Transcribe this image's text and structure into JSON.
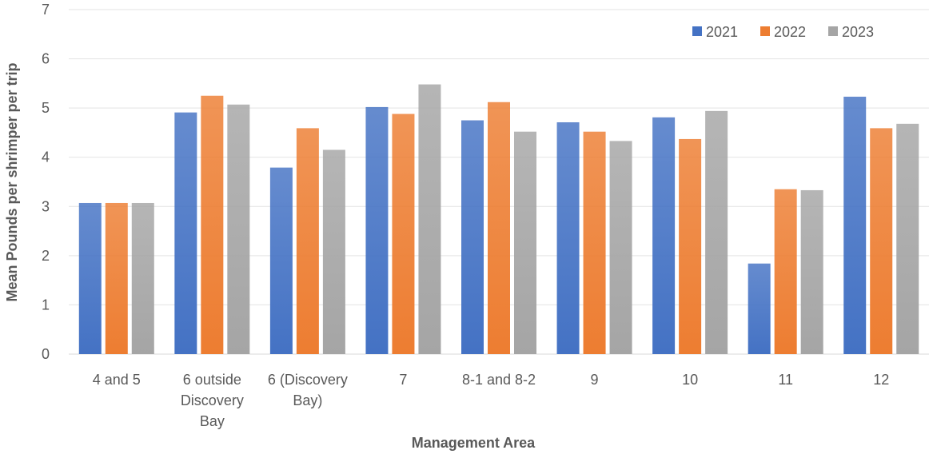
{
  "chart_data": {
    "type": "bar",
    "title": "",
    "xlabel": "Management Area",
    "ylabel": "Mean Pounds per shrimper per trip",
    "ylim": [
      0,
      7
    ],
    "yticks": [
      0,
      1,
      2,
      3,
      4,
      5,
      6,
      7
    ],
    "grid": true,
    "legend_position": "top-right",
    "categories": [
      [
        "4 and 5"
      ],
      [
        "6 outside",
        "Discovery",
        "Bay"
      ],
      [
        "6 (Discovery",
        "Bay)"
      ],
      [
        "7"
      ],
      [
        "8-1 and 8-2"
      ],
      [
        "9"
      ],
      [
        "10"
      ],
      [
        "11"
      ],
      [
        "12"
      ]
    ],
    "series": [
      {
        "name": "2021",
        "color": "#4472C4",
        "values": [
          3.07,
          4.91,
          3.79,
          5.02,
          4.75,
          4.71,
          4.81,
          1.84,
          5.23
        ]
      },
      {
        "name": "2022",
        "color": "#ED7D31",
        "values": [
          3.07,
          5.25,
          4.59,
          4.88,
          5.12,
          4.52,
          4.37,
          3.35,
          4.59
        ]
      },
      {
        "name": "2023",
        "color": "#A5A5A5",
        "values": [
          3.07,
          5.07,
          4.15,
          5.48,
          4.52,
          4.33,
          4.94,
          3.33,
          4.68
        ]
      }
    ]
  }
}
